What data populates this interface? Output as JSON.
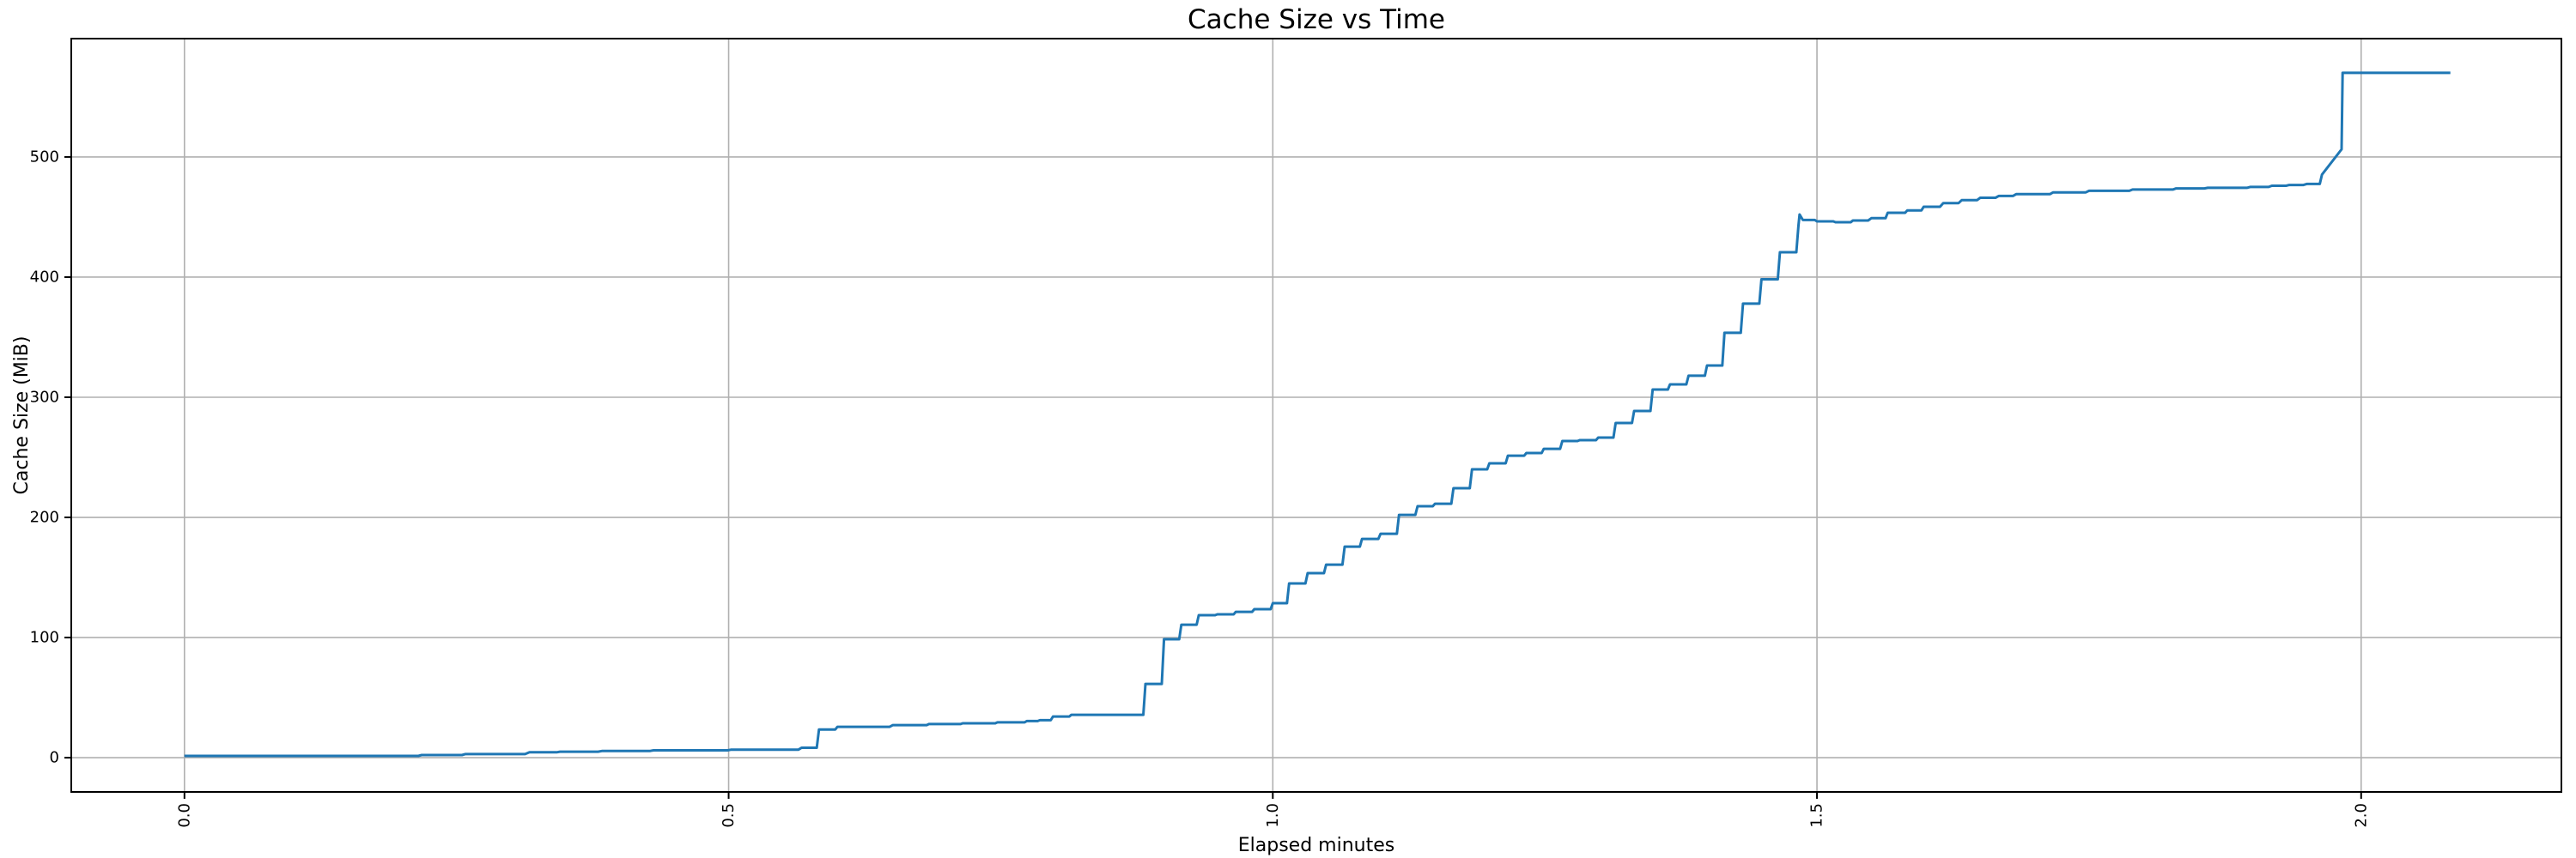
{
  "figure": {
    "title": "Cache Size vs Time",
    "xlabel": "Elapsed minutes",
    "ylabel": "Cache Size (MiB)"
  },
  "chart_data": {
    "type": "line",
    "title": "Cache Size vs Time",
    "xlabel": "Elapsed minutes",
    "ylabel": "Cache Size (MiB)",
    "x_unit": "minutes",
    "y_unit": "MiB",
    "xlim": [
      -0.104,
      2.184
    ],
    "ylim": [
      -28.5,
      598.5
    ],
    "xtick_labels": [
      "0.0",
      "0.5",
      "1.0",
      "1.5",
      "2.0"
    ],
    "xtick_values": [
      0.0,
      0.5,
      1.0,
      1.5,
      2.0
    ],
    "ytick_labels": [
      "0",
      "100",
      "200",
      "300",
      "400",
      "500"
    ],
    "ytick_values": [
      0,
      100,
      200,
      300,
      400,
      500
    ],
    "xtick_rotation_deg": 90,
    "grid": true,
    "legend": false,
    "colors": {
      "line": "#1f77b4",
      "grid": "#b0b0b0",
      "spine": "#000000",
      "background": "#ffffff",
      "text": "#000000"
    },
    "series": [
      {
        "name": "cache-size",
        "points": [
          [
            0.0,
            1.5
          ],
          [
            0.215,
            1.5
          ],
          [
            0.218,
            2.2
          ],
          [
            0.255,
            2.2
          ],
          [
            0.258,
            3.0
          ],
          [
            0.313,
            3.0
          ],
          [
            0.317,
            4.5
          ],
          [
            0.342,
            4.5
          ],
          [
            0.345,
            5.0
          ],
          [
            0.38,
            5.0
          ],
          [
            0.384,
            5.6
          ],
          [
            0.428,
            5.6
          ],
          [
            0.431,
            6.1
          ],
          [
            0.499,
            6.1
          ],
          [
            0.502,
            6.6
          ],
          [
            0.564,
            6.6
          ],
          [
            0.567,
            8.3
          ],
          [
            0.581,
            8.3
          ],
          [
            0.583,
            23.5
          ],
          [
            0.598,
            23.5
          ],
          [
            0.6,
            25.7
          ],
          [
            0.648,
            25.7
          ],
          [
            0.651,
            27.1
          ],
          [
            0.682,
            27.1
          ],
          [
            0.684,
            28.0
          ],
          [
            0.713,
            28.0
          ],
          [
            0.715,
            28.6
          ],
          [
            0.745,
            28.6
          ],
          [
            0.747,
            29.4
          ],
          [
            0.772,
            29.4
          ],
          [
            0.774,
            30.5
          ],
          [
            0.784,
            30.5
          ],
          [
            0.786,
            31.2
          ],
          [
            0.796,
            31.2
          ],
          [
            0.798,
            34.3
          ],
          [
            0.813,
            34.3
          ],
          [
            0.815,
            35.7
          ],
          [
            0.881,
            35.7
          ],
          [
            0.883,
            61.4
          ],
          [
            0.898,
            61.4
          ],
          [
            0.9,
            98.6
          ],
          [
            0.914,
            98.6
          ],
          [
            0.916,
            110.7
          ],
          [
            0.93,
            110.7
          ],
          [
            0.932,
            118.6
          ],
          [
            0.947,
            118.6
          ],
          [
            0.949,
            119.3
          ],
          [
            0.964,
            119.3
          ],
          [
            0.966,
            121.4
          ],
          [
            0.981,
            121.4
          ],
          [
            0.983,
            123.6
          ],
          [
            0.998,
            123.6
          ],
          [
            1.0,
            128.6
          ],
          [
            1.013,
            128.6
          ],
          [
            1.015,
            145.0
          ],
          [
            1.03,
            145.0
          ],
          [
            1.032,
            153.6
          ],
          [
            1.047,
            153.6
          ],
          [
            1.049,
            160.7
          ],
          [
            1.064,
            160.7
          ],
          [
            1.066,
            175.7
          ],
          [
            1.08,
            175.7
          ],
          [
            1.082,
            182.1
          ],
          [
            1.097,
            182.1
          ],
          [
            1.099,
            186.4
          ],
          [
            1.114,
            186.4
          ],
          [
            1.116,
            202.1
          ],
          [
            1.131,
            202.1
          ],
          [
            1.133,
            209.3
          ],
          [
            1.147,
            209.3
          ],
          [
            1.149,
            211.4
          ],
          [
            1.164,
            211.4
          ],
          [
            1.166,
            224.3
          ],
          [
            1.181,
            224.3
          ],
          [
            1.183,
            240.0
          ],
          [
            1.197,
            240.0
          ],
          [
            1.199,
            245.0
          ],
          [
            1.214,
            245.0
          ],
          [
            1.216,
            251.4
          ],
          [
            1.231,
            251.4
          ],
          [
            1.233,
            253.6
          ],
          [
            1.247,
            253.6
          ],
          [
            1.249,
            257.1
          ],
          [
            1.264,
            257.1
          ],
          [
            1.266,
            263.6
          ],
          [
            1.28,
            263.6
          ],
          [
            1.282,
            264.3
          ],
          [
            1.297,
            264.3
          ],
          [
            1.299,
            266.4
          ],
          [
            1.313,
            266.4
          ],
          [
            1.315,
            278.6
          ],
          [
            1.33,
            278.6
          ],
          [
            1.332,
            288.6
          ],
          [
            1.347,
            288.6
          ],
          [
            1.349,
            306.4
          ],
          [
            1.363,
            306.4
          ],
          [
            1.365,
            310.7
          ],
          [
            1.38,
            310.7
          ],
          [
            1.382,
            317.9
          ],
          [
            1.397,
            317.9
          ],
          [
            1.399,
            326.4
          ],
          [
            1.413,
            326.4
          ],
          [
            1.415,
            353.6
          ],
          [
            1.43,
            353.6
          ],
          [
            1.432,
            377.9
          ],
          [
            1.447,
            377.9
          ],
          [
            1.449,
            398.2
          ],
          [
            1.464,
            398.2
          ],
          [
            1.466,
            420.7
          ],
          [
            1.481,
            420.7
          ],
          [
            1.483,
            443.0
          ],
          [
            1.484,
            452.1
          ],
          [
            1.487,
            447.5
          ],
          [
            1.498,
            447.5
          ],
          [
            1.5,
            446.4
          ],
          [
            1.515,
            446.4
          ],
          [
            1.517,
            445.7
          ],
          [
            1.531,
            445.7
          ],
          [
            1.533,
            447.1
          ],
          [
            1.547,
            447.1
          ],
          [
            1.55,
            449.0
          ],
          [
            1.563,
            449.0
          ],
          [
            1.565,
            453.5
          ],
          [
            1.581,
            453.5
          ],
          [
            1.583,
            455.5
          ],
          [
            1.596,
            455.5
          ],
          [
            1.598,
            458.5
          ],
          [
            1.613,
            458.5
          ],
          [
            1.616,
            461.5
          ],
          [
            1.63,
            461.5
          ],
          [
            1.633,
            464.0
          ],
          [
            1.647,
            464.0
          ],
          [
            1.65,
            466.0
          ],
          [
            1.664,
            466.0
          ],
          [
            1.667,
            467.5
          ],
          [
            1.68,
            467.5
          ],
          [
            1.683,
            469.0
          ],
          [
            1.714,
            469.0
          ],
          [
            1.717,
            470.5
          ],
          [
            1.747,
            470.5
          ],
          [
            1.75,
            471.8
          ],
          [
            1.787,
            471.8
          ],
          [
            1.79,
            472.9
          ],
          [
            1.827,
            472.9
          ],
          [
            1.83,
            473.8
          ],
          [
            1.856,
            473.8
          ],
          [
            1.859,
            474.3
          ],
          [
            1.895,
            474.3
          ],
          [
            1.898,
            475.0
          ],
          [
            1.915,
            475.0
          ],
          [
            1.918,
            476.0
          ],
          [
            1.931,
            476.0
          ],
          [
            1.934,
            476.7
          ],
          [
            1.947,
            476.7
          ],
          [
            1.95,
            477.5
          ],
          [
            1.962,
            477.5
          ],
          [
            1.964,
            485.4
          ],
          [
            1.982,
            506.4
          ],
          [
            1.983,
            570.0
          ],
          [
            2.082,
            570.0
          ]
        ]
      }
    ]
  }
}
